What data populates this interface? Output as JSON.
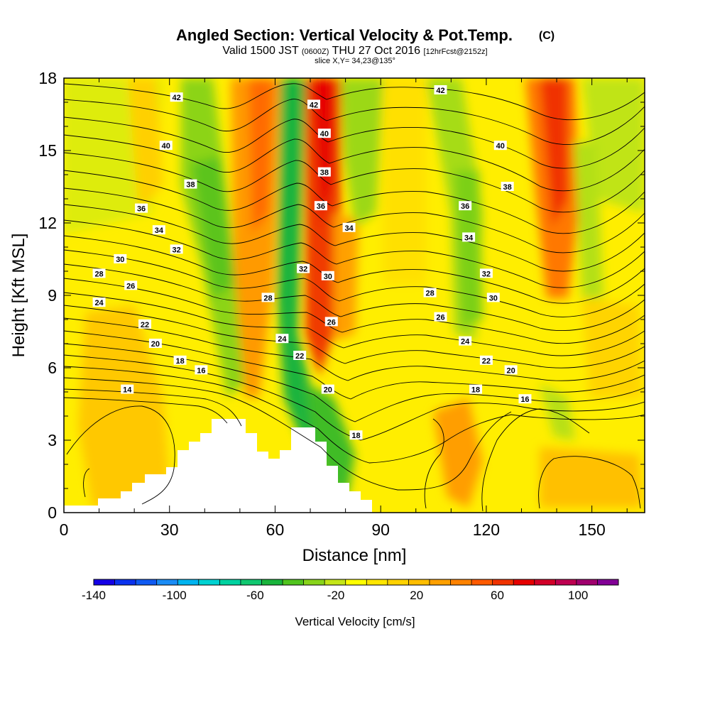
{
  "header": {
    "title": "Angled Section: Vertical Velocity & Pot.Temp.",
    "title_tag": "(C)",
    "valid_main": "Valid 1500 JST",
    "valid_zulu": "(0600Z)",
    "valid_date": "THU 27 Oct 2016",
    "forecast": "[12hrFcst@2152z]",
    "slice": "slice X,Y= 34,23@135°"
  },
  "colors": {
    "background": "#ffffff",
    "terrain": "#ffffff",
    "contour": "#000000",
    "colorbar": [
      "#1400e6",
      "#0a32ee",
      "#0f5af2",
      "#1a8cf5",
      "#00b4f0",
      "#00d2d2",
      "#00d2a0",
      "#10c870",
      "#19b43c",
      "#50c41e",
      "#88d41a",
      "#c4e618",
      "#ffff00",
      "#ffe600",
      "#ffd200",
      "#ffbe00",
      "#ffa000",
      "#ff8200",
      "#ff5a00",
      "#f03200",
      "#e60000",
      "#d20028",
      "#be0050",
      "#a0006e",
      "#820096"
    ]
  },
  "chart_data": {
    "type": "heatmap",
    "xlabel": "Distance [nm]",
    "ylabel": "Height [Kft MSL]",
    "xlim": [
      0,
      165
    ],
    "ylim": [
      0,
      18
    ],
    "xticks": [
      "0",
      "30",
      "60",
      "90",
      "120",
      "150"
    ],
    "yticks": [
      "0",
      "3",
      "6",
      "9",
      "12",
      "15",
      "18"
    ],
    "colorbar": {
      "label": "Vertical Velocity [cm/s]",
      "min": -140,
      "max": 120,
      "step": 10,
      "tick_labels": [
        "-140",
        "-100",
        "-60",
        "-20",
        "20",
        "60",
        "100"
      ]
    },
    "velocity_features": [
      {
        "x": 58,
        "width": 3,
        "value": 45
      },
      {
        "x": 65,
        "width": 2,
        "value": -70
      },
      {
        "x": 72,
        "width": 3,
        "value": 75
      },
      {
        "x": 80,
        "width": 3,
        "value": -30
      },
      {
        "x": 112,
        "width": 4,
        "value": -30
      },
      {
        "x": 140,
        "width": 5,
        "value": 60
      },
      {
        "x": 40,
        "width": 4,
        "value": -25
      }
    ],
    "terrain_profile": [
      [
        10,
        0.6
      ],
      [
        20,
        1.2
      ],
      [
        30,
        2.0
      ],
      [
        40,
        3.4
      ],
      [
        44,
        3.8
      ],
      [
        52,
        3.8
      ],
      [
        56,
        3.2
      ],
      [
        60,
        2.4
      ],
      [
        64,
        2.9
      ],
      [
        66,
        3.6
      ],
      [
        72,
        3.6
      ],
      [
        76,
        2.8
      ],
      [
        82,
        1.0
      ],
      [
        86,
        0.6
      ],
      [
        90,
        0.3
      ]
    ],
    "theta_contours": [
      14,
      16,
      18,
      20,
      22,
      24,
      26,
      28,
      30,
      32,
      34,
      36,
      38,
      40,
      42
    ],
    "contour_labels": [
      {
        "text": "42",
        "x": 32,
        "y": 17.2
      },
      {
        "text": "42",
        "x": 71,
        "y": 16.9
      },
      {
        "text": "42",
        "x": 107,
        "y": 17.5
      },
      {
        "text": "40",
        "x": 29,
        "y": 15.2
      },
      {
        "text": "40",
        "x": 74,
        "y": 15.7
      },
      {
        "text": "40",
        "x": 124,
        "y": 15.2
      },
      {
        "text": "38",
        "x": 36,
        "y": 13.6
      },
      {
        "text": "38",
        "x": 74,
        "y": 14.1
      },
      {
        "text": "38",
        "x": 126,
        "y": 13.5
      },
      {
        "text": "36",
        "x": 22,
        "y": 12.6
      },
      {
        "text": "36",
        "x": 73,
        "y": 12.7
      },
      {
        "text": "36",
        "x": 114,
        "y": 12.7
      },
      {
        "text": "34",
        "x": 27,
        "y": 11.7
      },
      {
        "text": "34",
        "x": 81,
        "y": 11.8
      },
      {
        "text": "34",
        "x": 115,
        "y": 11.4
      },
      {
        "text": "32",
        "x": 32,
        "y": 10.9
      },
      {
        "text": "32",
        "x": 68,
        "y": 10.1
      },
      {
        "text": "32",
        "x": 120,
        "y": 9.9
      },
      {
        "text": "30",
        "x": 16,
        "y": 10.5
      },
      {
        "text": "30",
        "x": 75,
        "y": 9.8
      },
      {
        "text": "30",
        "x": 122,
        "y": 8.9
      },
      {
        "text": "28",
        "x": 10,
        "y": 9.9
      },
      {
        "text": "28",
        "x": 58,
        "y": 8.9
      },
      {
        "text": "28",
        "x": 104,
        "y": 9.1
      },
      {
        "text": "26",
        "x": 19,
        "y": 9.4
      },
      {
        "text": "26",
        "x": 76,
        "y": 7.9
      },
      {
        "text": "26",
        "x": 107,
        "y": 8.1
      },
      {
        "text": "24",
        "x": 10,
        "y": 8.7
      },
      {
        "text": "24",
        "x": 62,
        "y": 7.2
      },
      {
        "text": "24",
        "x": 114,
        "y": 7.1
      },
      {
        "text": "22",
        "x": 23,
        "y": 7.8
      },
      {
        "text": "22",
        "x": 67,
        "y": 6.5
      },
      {
        "text": "22",
        "x": 120,
        "y": 6.3
      },
      {
        "text": "20",
        "x": 26,
        "y": 7.0
      },
      {
        "text": "20",
        "x": 75,
        "y": 5.1
      },
      {
        "text": "20",
        "x": 127,
        "y": 5.9
      },
      {
        "text": "18",
        "x": 33,
        "y": 6.3
      },
      {
        "text": "18",
        "x": 83,
        "y": 3.2
      },
      {
        "text": "18",
        "x": 117,
        "y": 5.1
      },
      {
        "text": "16",
        "x": 39,
        "y": 5.9
      },
      {
        "text": "16",
        "x": 131,
        "y": 4.7
      },
      {
        "text": "14",
        "x": 18,
        "y": 5.1
      }
    ]
  }
}
